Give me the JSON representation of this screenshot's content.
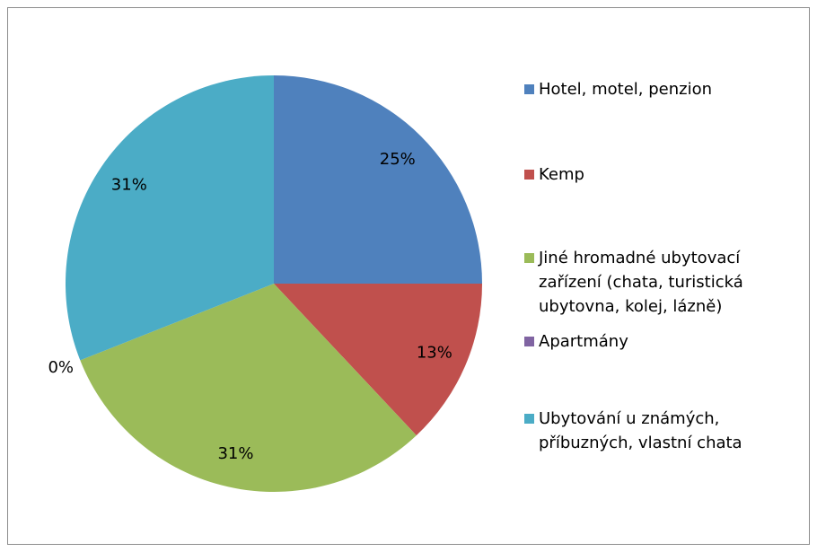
{
  "chart_data": {
    "type": "pie",
    "categories": [
      "Hotel, motel, penzion",
      "Kemp",
      "Jiné hromadné ubytovací zařízení (chata, turistická ubytovna, kolej, lázně)",
      "Apartmány",
      "Ubytování u známých, příbuzných, vlastní chata"
    ],
    "values": [
      25,
      13,
      31,
      0,
      31
    ],
    "value_labels": [
      "25%",
      "13%",
      "31%",
      "0%",
      "31%"
    ],
    "colors": [
      "#4f81bd",
      "#c0504d",
      "#9bbb59",
      "#8064a2",
      "#4bacc6"
    ],
    "legend": "right"
  }
}
